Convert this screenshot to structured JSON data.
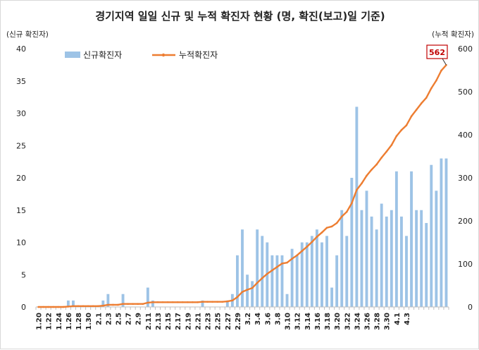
{
  "chart_data": {
    "type": "bar+line",
    "title": "경기지역 일일 신규 및 누적 확진자 현황 (명, 확진(보고)일 기준)",
    "ylabel_left": "(신규 확진자)",
    "ylabel_right": "(누적 확진자)",
    "ylim_left": [
      0,
      40
    ],
    "ylim_right": [
      0,
      600
    ],
    "yticks_left": [
      0,
      5,
      10,
      15,
      20,
      25,
      30,
      35,
      40
    ],
    "yticks_right": [
      0,
      100,
      200,
      300,
      400,
      500,
      600
    ],
    "x_tick_labels": [
      "1.20",
      "1.22",
      "1.24",
      "1.26",
      "1.28",
      "1.30",
      "2.1",
      "2.3",
      "2.5",
      "2.7",
      "2.9",
      "2.11",
      "2.13",
      "2.15",
      "2.17",
      "2.19",
      "2.21",
      "2.23",
      "2.25",
      "2.27",
      "2.29",
      "3.2",
      "3.4",
      "3.6",
      "3.8",
      "3.10",
      "3.12",
      "3.14",
      "3.16",
      "3.18",
      "3.20",
      "3.22",
      "3.24",
      "3.26",
      "3.28",
      "3.30",
      "4.1",
      "4.3"
    ],
    "grid": false,
    "legend_position": "top-left",
    "annotation": "562",
    "colors": {
      "bar": "#9dc3e6",
      "line": "#ed7d31",
      "callout_border": "#c00000"
    },
    "series": [
      {
        "name": "신규확진자",
        "type": "bar",
        "axis": "left",
        "values": [
          0,
          0,
          0,
          0,
          0,
          0,
          1,
          1,
          0,
          0,
          0,
          0,
          0,
          1,
          2,
          0,
          0,
          2,
          0,
          0,
          0,
          0,
          3,
          1,
          0,
          0,
          0,
          0,
          0,
          0,
          0,
          0,
          0,
          1,
          0,
          0,
          0,
          0,
          1,
          2,
          8,
          12,
          5,
          4,
          12,
          11,
          10,
          8,
          8,
          8,
          2,
          9,
          8,
          10,
          10,
          11,
          12,
          10,
          11,
          3,
          8,
          15,
          11,
          20,
          31,
          15,
          18,
          14,
          12,
          16,
          14,
          15,
          21,
          14,
          11,
          21,
          15,
          15,
          13,
          22,
          18,
          23,
          23
        ]
      },
      {
        "name": "누적확진자",
        "type": "line",
        "axis": "right",
        "values": [
          0,
          0,
          0,
          0,
          0,
          0,
          1,
          2,
          2,
          2,
          2,
          2,
          2,
          3,
          5,
          5,
          5,
          7,
          7,
          7,
          7,
          7,
          10,
          11,
          11,
          11,
          11,
          11,
          11,
          11,
          11,
          11,
          11,
          12,
          12,
          12,
          12,
          12,
          13,
          15,
          23,
          35,
          40,
          44,
          56,
          67,
          77,
          85,
          93,
          101,
          103,
          112,
          120,
          130,
          140,
          151,
          163,
          173,
          184,
          187,
          195,
          210,
          221,
          241,
          272,
          287,
          305,
          319,
          331,
          347,
          361,
          376,
          397,
          411,
          422,
          443,
          458,
          473,
          486,
          508,
          526,
          549,
          562
        ]
      }
    ]
  }
}
